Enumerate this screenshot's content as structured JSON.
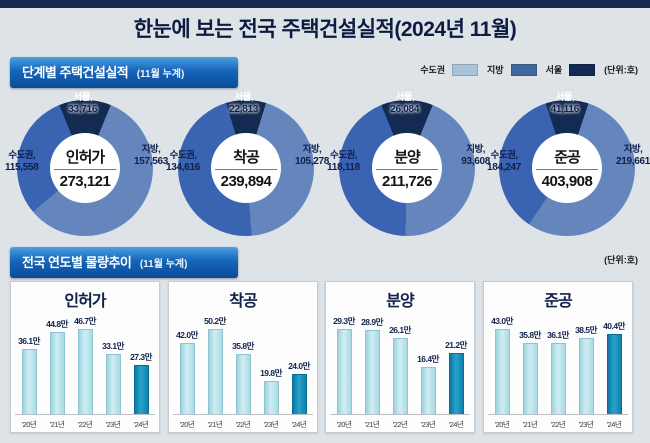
{
  "page": {
    "title": "한눈에 보는 전국 주택건설실적(2024년 11월)"
  },
  "section1": {
    "title": "단계별 주택건설실적",
    "subtitle": "(11월 누계)",
    "unit": "(단위:호)",
    "legend": [
      {
        "label": "수도권",
        "color": "#a9c3da"
      },
      {
        "label": "지방",
        "color": "#42699f"
      },
      {
        "label": "서울",
        "color": "#132a52"
      }
    ]
  },
  "section2": {
    "title": "전국 연도별 물량추이",
    "subtitle": "(11월 누계)",
    "unit": "(단위:호)"
  },
  "colors": {
    "donut_seoul": "#132a52",
    "donut_sudogwon": "#3a63b1",
    "donut_jibang": "#6585bd",
    "bar_light": "light",
    "bar_dark": "dark"
  },
  "chart_data": [
    {
      "type": "donut",
      "title": "인허가",
      "total": 273121,
      "total_label": "273,121",
      "segments": [
        {
          "name": "서울",
          "value": 33716,
          "label": "33,716"
        },
        {
          "name": "수도권",
          "value": 115558,
          "label": "115,558"
        },
        {
          "name": "지방",
          "value": 157563,
          "label": "157,563"
        }
      ]
    },
    {
      "type": "donut",
      "title": "착공",
      "total": 239894,
      "total_label": "239,894",
      "segments": [
        {
          "name": "서울",
          "value": 22813,
          "label": "22,813"
        },
        {
          "name": "수도권",
          "value": 134616,
          "label": "134,616"
        },
        {
          "name": "지방",
          "value": 105278,
          "label": "105,278"
        }
      ]
    },
    {
      "type": "donut",
      "title": "분양",
      "total": 211726,
      "total_label": "211,726",
      "segments": [
        {
          "name": "서울",
          "value": 26084,
          "label": "26,084"
        },
        {
          "name": "수도권",
          "value": 118118,
          "label": "118,118"
        },
        {
          "name": "지방",
          "value": 93608,
          "label": "93,608"
        }
      ]
    },
    {
      "type": "donut",
      "title": "준공",
      "total": 403908,
      "total_label": "403,908",
      "segments": [
        {
          "name": "서울",
          "value": 41116,
          "label": "41,116"
        },
        {
          "name": "수도권",
          "value": 184247,
          "label": "184,247"
        },
        {
          "name": "지방",
          "value": 219661,
          "label": "219,661"
        }
      ]
    },
    {
      "type": "bar",
      "title": "인허가",
      "categories": [
        "'20년",
        "'21년",
        "'22년",
        "'23년",
        "'24년"
      ],
      "values": [
        36.1,
        44.8,
        46.7,
        33.1,
        27.3
      ],
      "labels": [
        "36.1만",
        "44.8만",
        "46.7만",
        "33.1만",
        "27.3만"
      ],
      "highlight_index": 4
    },
    {
      "type": "bar",
      "title": "착공",
      "categories": [
        "'20년",
        "'21년",
        "'22년",
        "'23년",
        "'24년"
      ],
      "values": [
        42.0,
        50.2,
        35.8,
        19.8,
        24.0
      ],
      "labels": [
        "42.0만",
        "50.2만",
        "35.8만",
        "19.8만",
        "24.0만"
      ],
      "highlight_index": 4
    },
    {
      "type": "bar",
      "title": "분양",
      "categories": [
        "'20년",
        "'21년",
        "'22년",
        "'23년",
        "'24년"
      ],
      "values": [
        29.3,
        28.9,
        26.1,
        16.4,
        21.2
      ],
      "labels": [
        "29.3만",
        "28.9만",
        "26.1만",
        "16.4만",
        "21.2만"
      ],
      "highlight_index": 4
    },
    {
      "type": "bar",
      "title": "준공",
      "categories": [
        "'20년",
        "'21년",
        "'22년",
        "'23년",
        "'24년"
      ],
      "values": [
        43.0,
        35.8,
        36.1,
        38.5,
        40.4
      ],
      "labels": [
        "43.0만",
        "35.8만",
        "36.1만",
        "38.5만",
        "40.4만"
      ],
      "highlight_index": 4
    }
  ]
}
